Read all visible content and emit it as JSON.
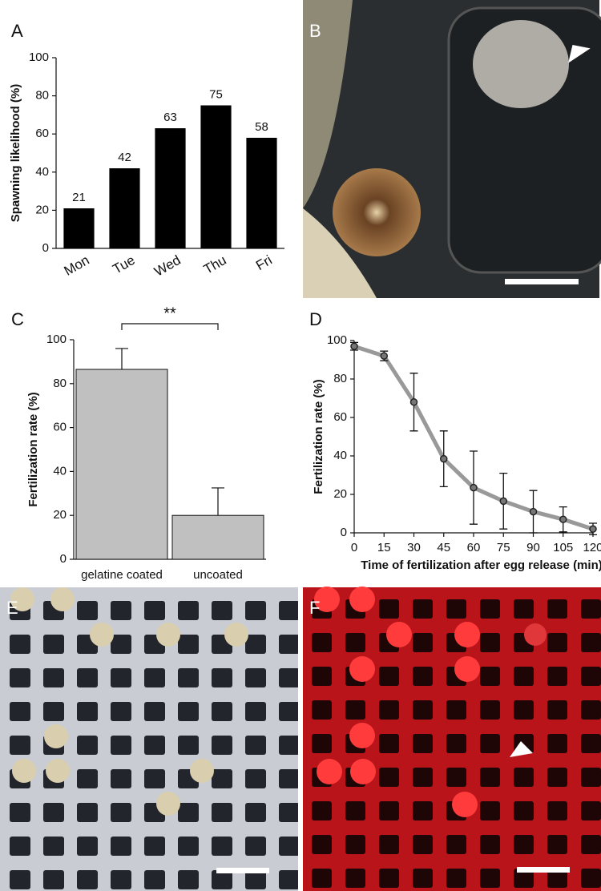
{
  "panel_labels": [
    "A",
    "B",
    "C",
    "D",
    "E",
    "F"
  ],
  "chart_data": [
    {
      "type": "bar",
      "categories": [
        "Mon",
        "Tue",
        "Wed",
        "Thu",
        "Fri"
      ],
      "values": [
        21,
        42,
        63,
        75,
        58
      ],
      "color": "#000000",
      "ylabel": "Spawning likelihood (%)",
      "ylim": [
        0,
        100
      ],
      "yticks": [
        0,
        20,
        40,
        60,
        80,
        100
      ],
      "show_value_labels": true
    },
    {
      "type": "bar",
      "categories": [
        "gelatine coated",
        "uncoated"
      ],
      "values": [
        86.5,
        20
      ],
      "errors": [
        9.5,
        12.5
      ],
      "color": "#c0c0c0",
      "ylabel": "Fertilization rate (%)",
      "ylim": [
        0,
        100
      ],
      "yticks": [
        0,
        20,
        40,
        60,
        80,
        100
      ],
      "annotation": "**"
    },
    {
      "type": "line",
      "x": [
        0,
        15,
        30,
        45,
        60,
        75,
        90,
        105,
        120
      ],
      "values": [
        97,
        92,
        68,
        38.5,
        23.5,
        16.5,
        11,
        7,
        2
      ],
      "errors": [
        2,
        2.5,
        15,
        14.5,
        19,
        14.5,
        11,
        6.5,
        3
      ],
      "color": "#999999",
      "xlabel": "Time of fertilization after egg release (min)",
      "ylabel": "Fertilization rate (%)",
      "xlim": [
        0,
        120
      ],
      "xticks": [
        0,
        15,
        30,
        45,
        60,
        75,
        90,
        105,
        120
      ],
      "ylim": [
        0,
        100
      ],
      "yticks": [
        0,
        20,
        40,
        60,
        80,
        100
      ]
    }
  ]
}
